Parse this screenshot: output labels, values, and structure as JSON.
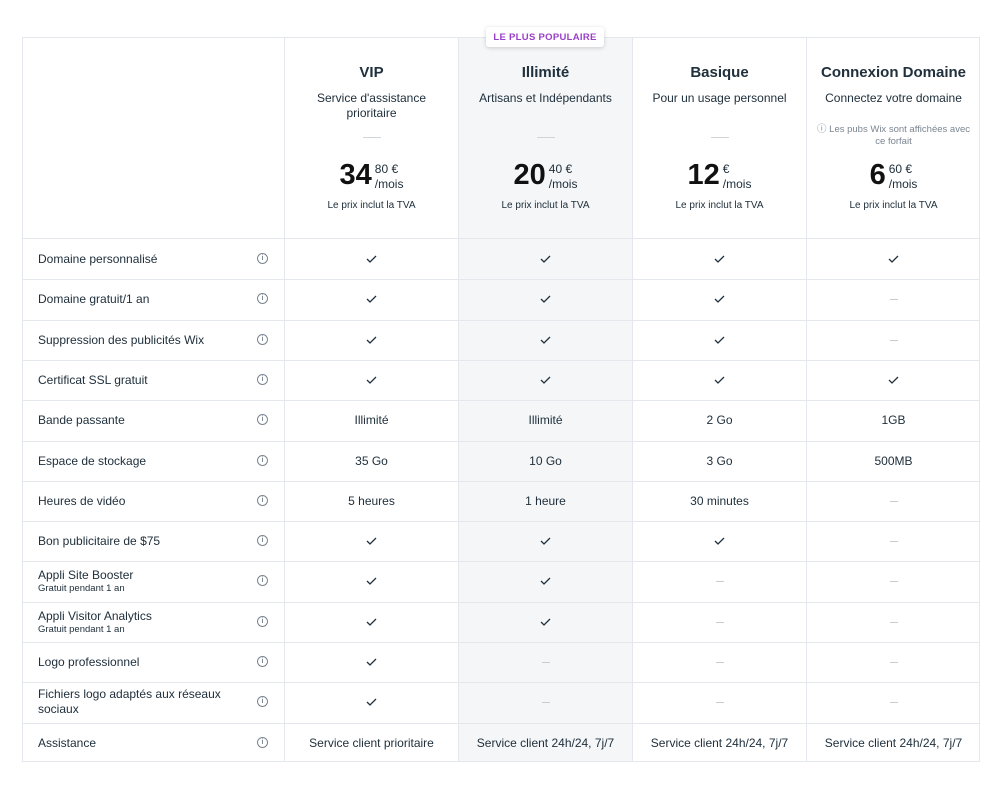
{
  "badge": "LE PLUS POPULAIRE",
  "plans": [
    {
      "name": "VIP",
      "desc": "Service d'assistance prioritaire",
      "note": "",
      "price_int": "34",
      "price_dec": "80 €",
      "per": "/mois",
      "tva": "Le prix inclut la TVA"
    },
    {
      "name": "Illimité",
      "desc": "Artisans et Indépendants",
      "note": "",
      "price_int": "20",
      "price_dec": "40 €",
      "per": "/mois",
      "tva": "Le prix inclut la TVA"
    },
    {
      "name": "Basique",
      "desc": "Pour un usage personnel",
      "note": "",
      "price_int": "12",
      "price_dec": "€",
      "per": "/mois",
      "tva": "Le prix inclut la TVA"
    },
    {
      "name": "Connexion Domaine",
      "desc": "Connectez votre domaine",
      "note": "ⓘ Les pubs Wix sont affichées avec ce forfait",
      "price_int": "6",
      "price_dec": "60 €",
      "per": "/mois",
      "tva": "Le prix inclut la TVA"
    }
  ],
  "features": [
    {
      "label": "Domaine personnalisé",
      "sub": "",
      "values": [
        "check",
        "check",
        "check",
        "check"
      ]
    },
    {
      "label": "Domaine gratuit/1 an",
      "sub": "",
      "values": [
        "check",
        "check",
        "check",
        "dash"
      ]
    },
    {
      "label": "Suppression des publicités Wix",
      "sub": "",
      "values": [
        "check",
        "check",
        "check",
        "dash"
      ]
    },
    {
      "label": "Certificat SSL gratuit",
      "sub": "",
      "values": [
        "check",
        "check",
        "check",
        "check"
      ]
    },
    {
      "label": "Bande passante",
      "sub": "",
      "values": [
        "Illimité",
        "Illimité",
        "2 Go",
        "1GB"
      ]
    },
    {
      "label": "Espace de stockage",
      "sub": "",
      "values": [
        "35 Go",
        "10 Go",
        "3 Go",
        "500MB"
      ]
    },
    {
      "label": "Heures de vidéo",
      "sub": "",
      "values": [
        "5 heures",
        "1 heure",
        "30 minutes",
        "dash"
      ]
    },
    {
      "label": "Bon publicitaire de $75",
      "sub": "",
      "values": [
        "check",
        "check",
        "check",
        "dash"
      ]
    },
    {
      "label": "Appli Site Booster",
      "sub": "Gratuit pendant 1 an",
      "values": [
        "check",
        "check",
        "dash",
        "dash"
      ]
    },
    {
      "label": "Appli Visitor Analytics",
      "sub": "Gratuit pendant 1 an",
      "values": [
        "check",
        "check",
        "dash",
        "dash"
      ]
    },
    {
      "label": "Logo professionnel",
      "sub": "",
      "values": [
        "check",
        "dash",
        "dash",
        "dash"
      ]
    },
    {
      "label": "Fichiers logo adaptés aux réseaux sociaux",
      "sub": "",
      "values": [
        "check",
        "dash",
        "dash",
        "dash"
      ]
    },
    {
      "label": "Assistance",
      "sub": "",
      "values": [
        "Service client prioritaire",
        "Service client 24h/24, 7j/7",
        "Service client 24h/24, 7j/7",
        "Service client 24h/24, 7j/7"
      ]
    }
  ],
  "icons": {
    "info": "info-icon",
    "check": "check-icon",
    "dash": "dash-icon"
  }
}
